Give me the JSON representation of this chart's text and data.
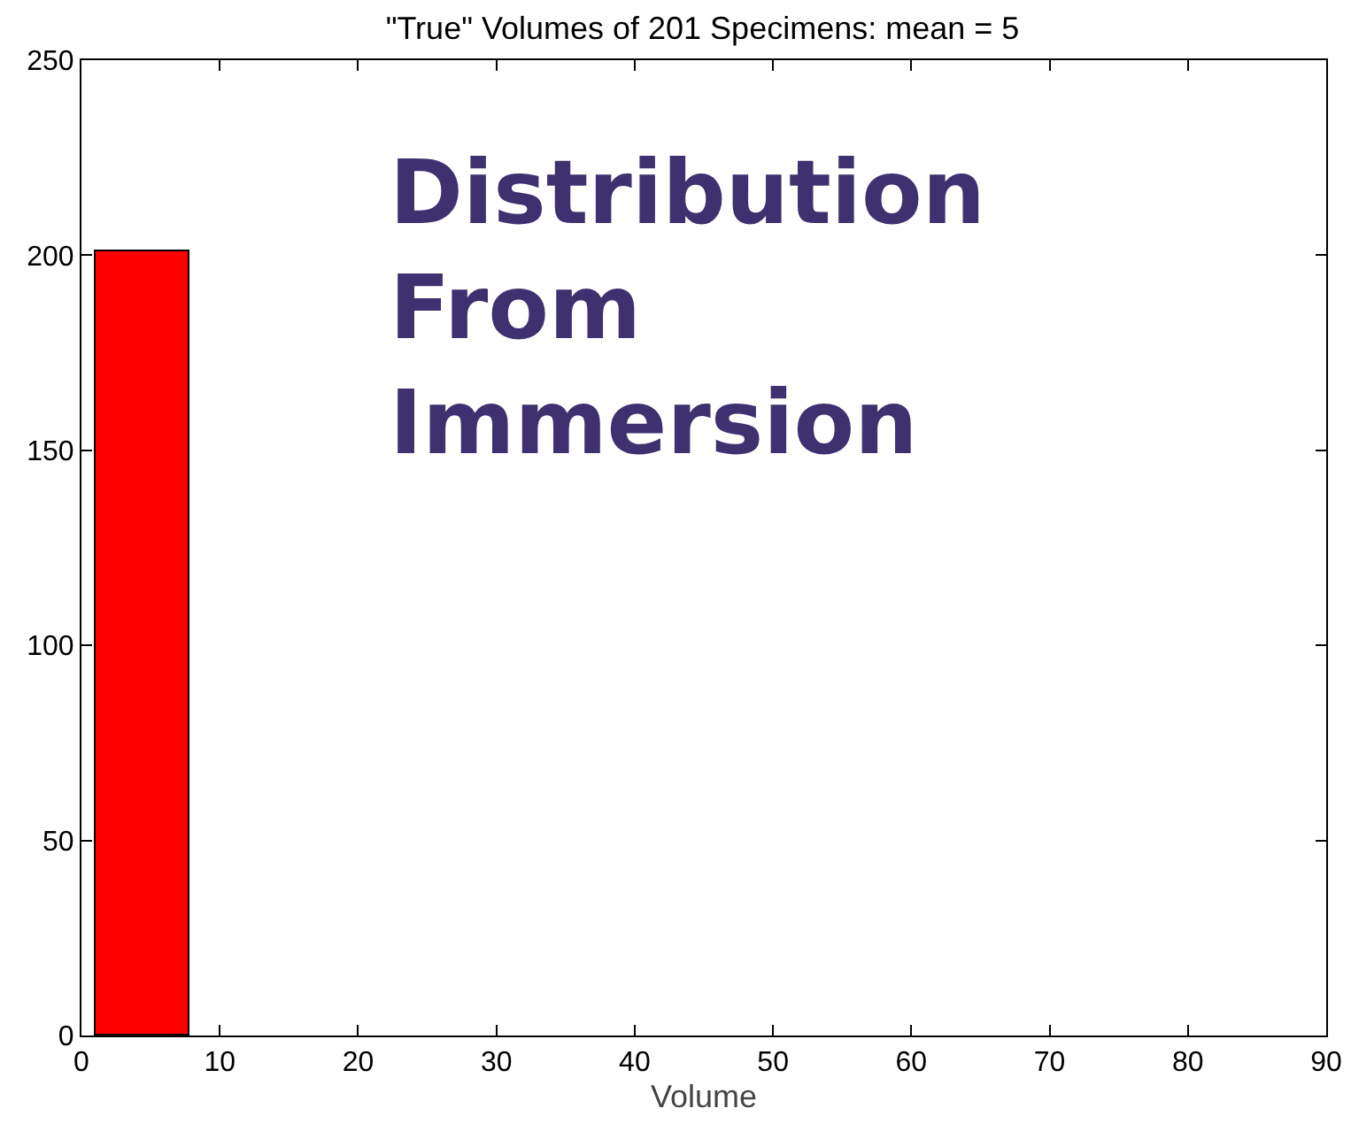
{
  "chart_data": {
    "type": "histogram",
    "title": "\"True\" Volumes of 201 Specimens: mean = 5",
    "xlabel": "Volume",
    "bins": [
      1,
      7.8
    ],
    "values": [
      201
    ],
    "color": "#ff0000",
    "xlim": [
      0,
      90
    ],
    "xticks": [
      0,
      10,
      20,
      30,
      40,
      50,
      60,
      70,
      80,
      90
    ],
    "ylim": [
      0,
      250
    ],
    "yticks": [
      0,
      50,
      100,
      150,
      200,
      250
    ],
    "grid": false,
    "annotations": [
      "Distribution\nFrom\nImmersion"
    ]
  }
}
